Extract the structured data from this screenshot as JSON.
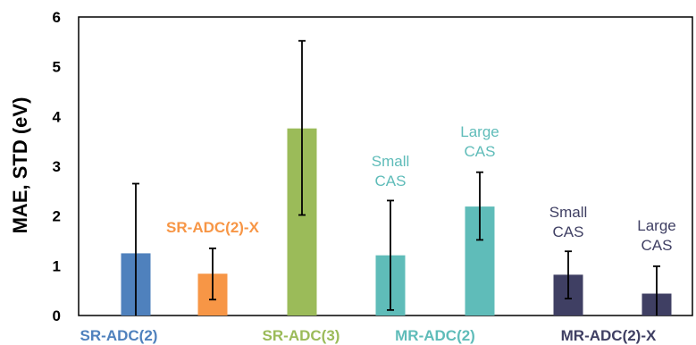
{
  "chart_data": {
    "type": "bar",
    "title": "",
    "xlabel": "",
    "ylabel": "MAE, STD (eV)",
    "ylim": [
      0,
      6
    ],
    "yticks": [
      0,
      1,
      2,
      3,
      4,
      5,
      6
    ],
    "grid": false,
    "bars": [
      {
        "value": 1.25,
        "err_low": 0.0,
        "err_high": 2.65,
        "color": "#4f81bd"
      },
      {
        "value": 0.84,
        "err_low": 0.32,
        "err_high": 1.35,
        "color": "#f79646"
      },
      {
        "value": 3.76,
        "err_low": 2.02,
        "err_high": 5.52,
        "color": "#9bbb59"
      },
      {
        "value": 1.21,
        "err_low": 0.11,
        "err_high": 2.31,
        "color": "#5fbcb9"
      },
      {
        "value": 2.19,
        "err_low": 1.52,
        "err_high": 2.88,
        "color": "#5fbcb9"
      },
      {
        "value": 0.82,
        "err_low": 0.34,
        "err_high": 1.29,
        "color": "#3f3f63"
      },
      {
        "value": 0.44,
        "err_low": 0.0,
        "err_high": 0.99,
        "color": "#3f3f63"
      }
    ],
    "category_labels": [
      {
        "text": "SR-ADC(2)",
        "color": "#4f81bd"
      },
      {
        "text": "SR-ADC(3)",
        "color": "#9bbb59"
      },
      {
        "text": "MR-ADC(2)",
        "color": "#5fbcb9"
      },
      {
        "text": "MR-ADC(2)-X",
        "color": "#3f3f63"
      }
    ],
    "annotations": [
      {
        "lines": [
          "SR-ADC(2)-X"
        ],
        "color": "#f79646",
        "bold": true
      },
      {
        "lines": [
          "Small",
          "CAS"
        ],
        "color": "#5fbcb9",
        "bold": false
      },
      {
        "lines": [
          "Large",
          "CAS"
        ],
        "color": "#5fbcb9",
        "bold": false
      },
      {
        "lines": [
          "Small",
          "CAS"
        ],
        "color": "#3f3f63",
        "bold": false
      },
      {
        "lines": [
          "Large",
          "CAS"
        ],
        "color": "#3f3f63",
        "bold": false
      }
    ]
  }
}
